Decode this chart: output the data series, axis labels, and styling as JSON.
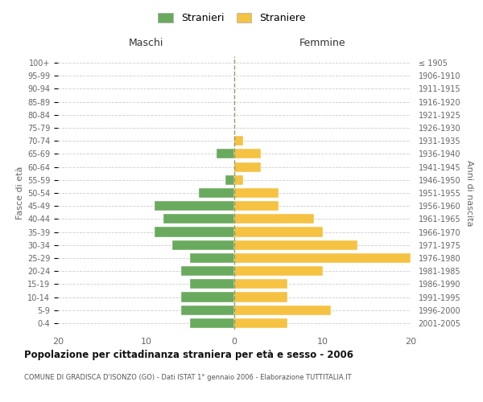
{
  "age_groups": [
    "0-4",
    "5-9",
    "10-14",
    "15-19",
    "20-24",
    "25-29",
    "30-34",
    "35-39",
    "40-44",
    "45-49",
    "50-54",
    "55-59",
    "60-64",
    "65-69",
    "70-74",
    "75-79",
    "80-84",
    "85-89",
    "90-94",
    "95-99",
    "100+"
  ],
  "birth_years": [
    "2001-2005",
    "1996-2000",
    "1991-1995",
    "1986-1990",
    "1981-1985",
    "1976-1980",
    "1971-1975",
    "1966-1970",
    "1961-1965",
    "1956-1960",
    "1951-1955",
    "1946-1950",
    "1941-1945",
    "1936-1940",
    "1931-1935",
    "1926-1930",
    "1921-1925",
    "1916-1920",
    "1911-1915",
    "1906-1910",
    "≤ 1905"
  ],
  "maschi": [
    5,
    6,
    6,
    5,
    6,
    5,
    7,
    9,
    8,
    9,
    4,
    1,
    0,
    2,
    0,
    0,
    0,
    0,
    0,
    0,
    0
  ],
  "femmine": [
    6,
    11,
    6,
    6,
    10,
    20,
    14,
    10,
    9,
    5,
    5,
    1,
    3,
    3,
    1,
    0,
    0,
    0,
    0,
    0,
    0
  ],
  "color_maschi": "#6aaa5e",
  "color_femmine": "#f5c242",
  "title": "Popolazione per cittadinanza straniera per età e sesso - 2006",
  "subtitle": "COMUNE DI GRADISCA D'ISONZO (GO) - Dati ISTAT 1° gennaio 2006 - Elaborazione TUTTITALIA.IT",
  "xlabel_left": "Maschi",
  "xlabel_right": "Femmine",
  "ylabel_left": "Fasce di età",
  "ylabel_right": "Anni di nascita",
  "legend_stranieri": "Stranieri",
  "legend_straniere": "Straniere",
  "xlim": 20,
  "background_color": "#ffffff",
  "grid_color": "#cccccc",
  "bar_edge_color": "#ffffff"
}
